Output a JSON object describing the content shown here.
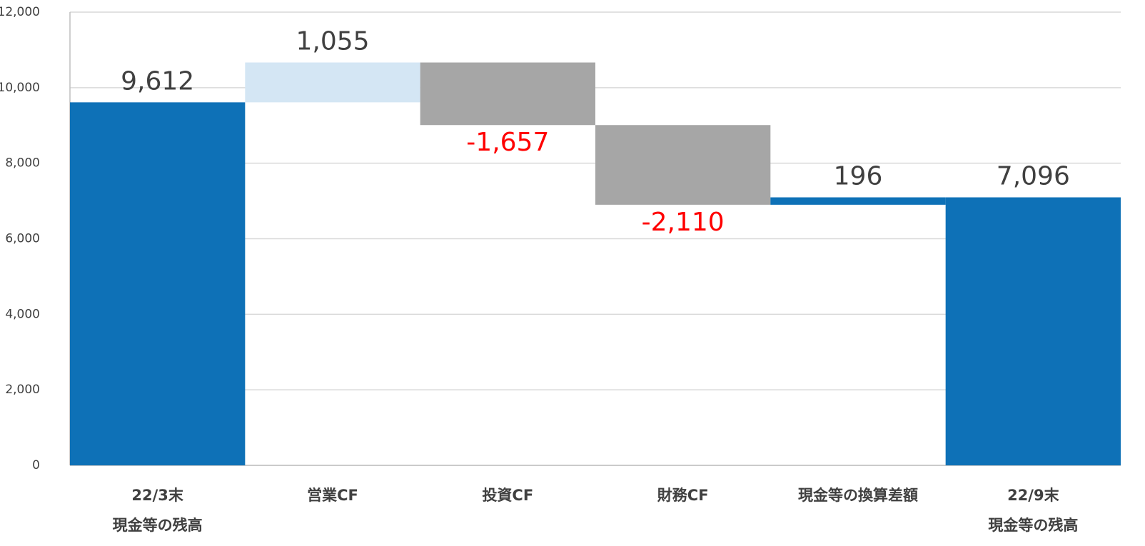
{
  "chart_data": {
    "type": "waterfall",
    "categories": [
      [
        "22/3末",
        "現金等の残高"
      ],
      [
        "営業CF"
      ],
      [
        "投資CF"
      ],
      [
        "財務CF"
      ],
      [
        "現金等の換算差額"
      ],
      [
        "22/9末",
        "現金等の残高"
      ]
    ],
    "values": [
      9612,
      1055,
      -1657,
      -2110,
      196,
      7096
    ],
    "value_labels": [
      "9,612",
      "1,055",
      "-1,657",
      "-2,110",
      "196",
      "7,096"
    ],
    "measure": [
      "absolute",
      "relative",
      "relative",
      "relative",
      "relative",
      "absolute"
    ],
    "colors": [
      "#0e71b7",
      "#d4e6f4",
      "#a6a6a6",
      "#a6a6a6",
      "#0e71b7",
      "#0e71b7"
    ],
    "label_colors": [
      "#404040",
      "#404040",
      "#ff0000",
      "#ff0000",
      "#404040",
      "#404040"
    ],
    "ylim": [
      0,
      12000
    ],
    "yticks": [
      0,
      {
        "value": 2000,
        "label": "2,000"
      },
      {
        "value": 4000,
        "label": "4,000"
      },
      {
        "value": 6000,
        "label": "6,000"
      },
      {
        "value": 8000,
        "label": "8,000"
      },
      {
        "value": 10000,
        "label": "10,000"
      },
      {
        "value": 12000,
        "label": "12,000"
      }
    ],
    "grid": true
  }
}
